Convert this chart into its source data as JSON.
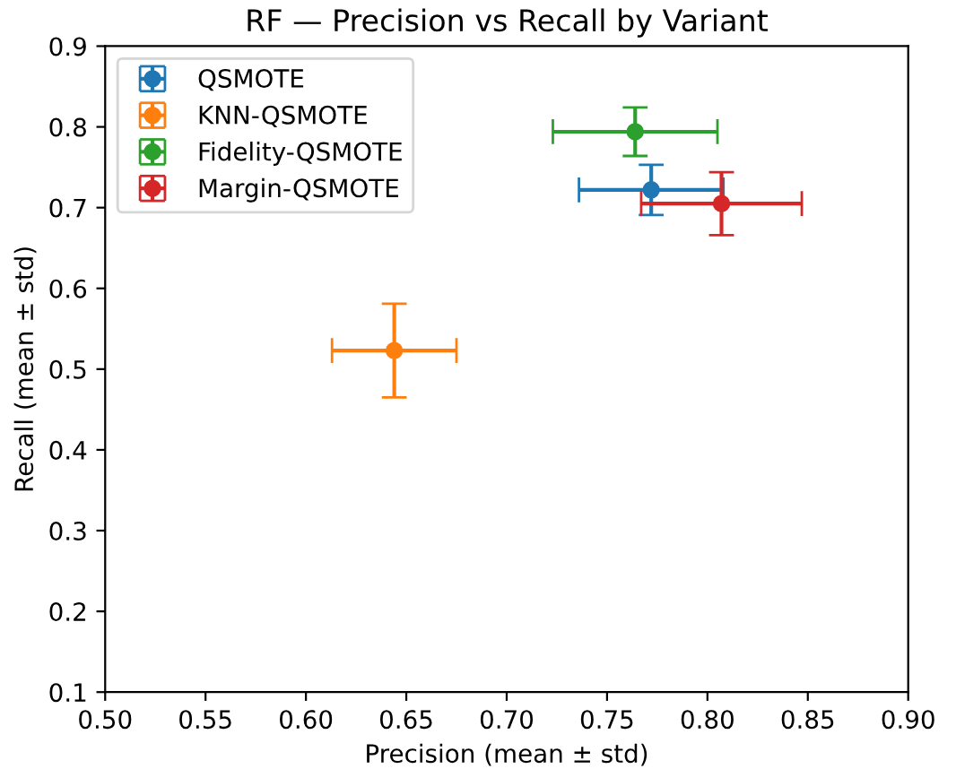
{
  "chart_data": {
    "type": "scatter",
    "title": "RF — Precision vs Recall by Variant",
    "xlabel": "Precision (mean ± std)",
    "ylabel": "Recall (mean ± std)",
    "series": [
      {
        "name": "QSMOTE",
        "color": "#1f77b4",
        "x": [
          0.772
        ],
        "values": [
          0.722
        ],
        "xerrors": [
          0.036
        ],
        "errors": [
          0.031
        ]
      },
      {
        "name": "KNN-QSMOTE",
        "color": "#ff7f0e",
        "x": [
          0.644
        ],
        "values": [
          0.523
        ],
        "xerrors": [
          0.031
        ],
        "errors": [
          0.058
        ]
      },
      {
        "name": "Fidelity-QSMOTE",
        "color": "#2ca02c",
        "x": [
          0.764
        ],
        "values": [
          0.794
        ],
        "xerrors": [
          0.041
        ],
        "errors": [
          0.03
        ]
      },
      {
        "name": "Margin-QSMOTE",
        "color": "#d62728",
        "x": [
          0.807
        ],
        "values": [
          0.705
        ],
        "xerrors": [
          0.04
        ],
        "errors": [
          0.039
        ]
      }
    ],
    "xlim": [
      0.5,
      0.9
    ],
    "ylim": [
      0.1,
      0.9
    ],
    "xticks": [
      {
        "value": 0.5,
        "label": "0.50"
      },
      {
        "value": 0.55,
        "label": "0.55"
      },
      {
        "value": 0.6,
        "label": "0.60"
      },
      {
        "value": 0.65,
        "label": "0.65"
      },
      {
        "value": 0.7,
        "label": "0.70"
      },
      {
        "value": 0.75,
        "label": "0.75"
      },
      {
        "value": 0.8,
        "label": "0.80"
      },
      {
        "value": 0.85,
        "label": "0.85"
      },
      {
        "value": 0.9,
        "label": "0.90"
      }
    ],
    "yticks": [
      0.1,
      0.2,
      0.3,
      0.4,
      0.5,
      0.6,
      0.7,
      0.8,
      0.9
    ],
    "marker": "circle",
    "legend": "top left",
    "grid": false
  }
}
